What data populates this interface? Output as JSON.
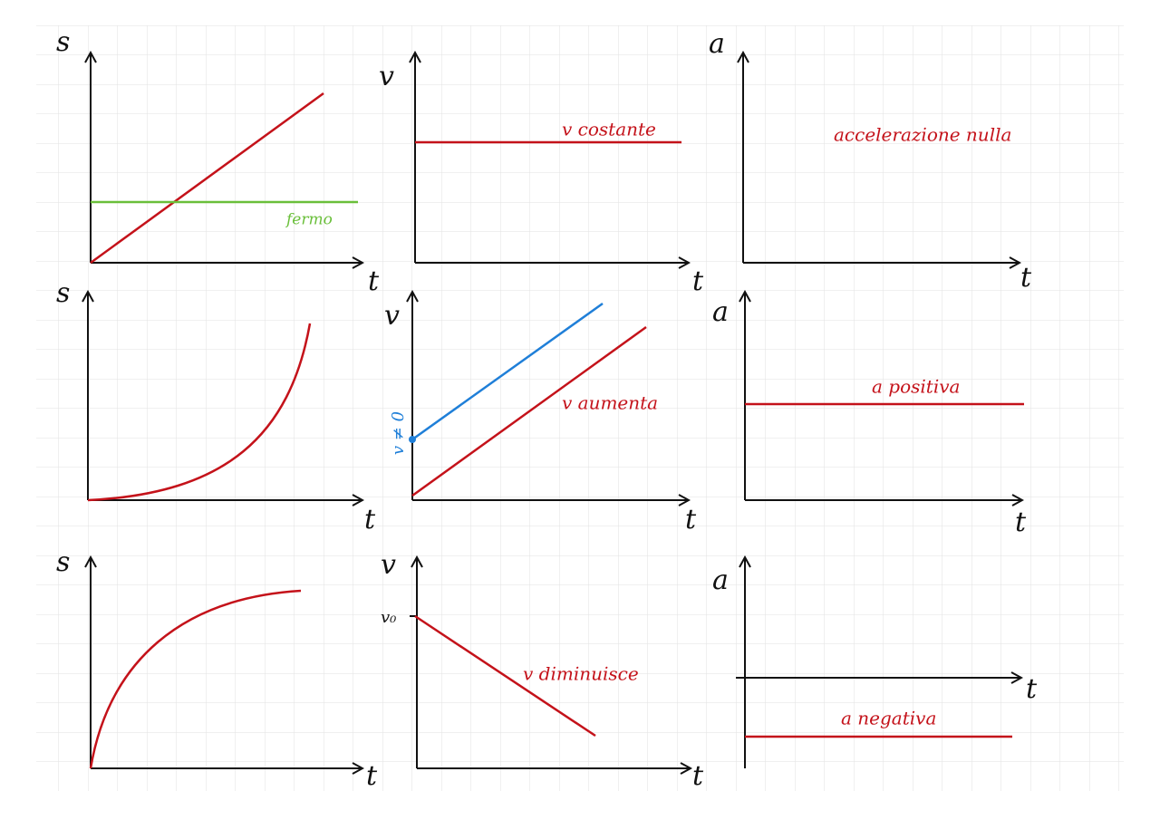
{
  "panels": [
    {
      "y_label": "s",
      "x_label": "t",
      "annotations": [
        "fermo"
      ]
    },
    {
      "y_label": "v",
      "x_label": "t",
      "annotations": [
        "v costante"
      ]
    },
    {
      "y_label": "a",
      "x_label": "t",
      "annotations": [
        "accelerazione nulla"
      ]
    },
    {
      "y_label": "s",
      "x_label": "t",
      "annotations": []
    },
    {
      "y_label": "v",
      "x_label": "t",
      "annotations": [
        "v aumenta",
        "v ≠ 0"
      ]
    },
    {
      "y_label": "a",
      "x_label": "t",
      "annotations": [
        "a positiva"
      ]
    },
    {
      "y_label": "s",
      "x_label": "t",
      "annotations": []
    },
    {
      "y_label": "v",
      "x_label": "t",
      "annotations": [
        "v diminuisce",
        "v₀"
      ]
    },
    {
      "y_label": "a",
      "x_label": "t",
      "annotations": [
        "a negativa"
      ]
    }
  ]
}
